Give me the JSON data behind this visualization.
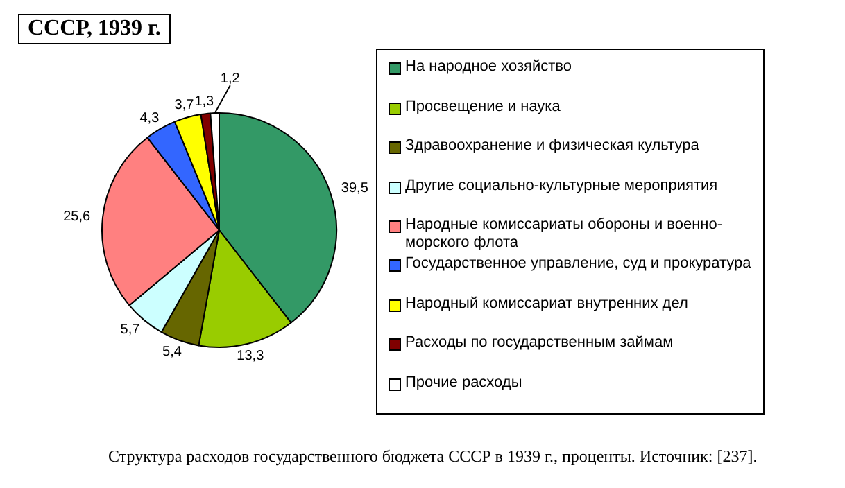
{
  "chart_data": {
    "type": "pie",
    "title": "СССР, 1939 г.",
    "categories": [
      "На народное хозяйство",
      "Просвещение и наука",
      "Здравоохранение и физическая культура",
      "Другие социально-культурные мероприятия",
      "Народные комиссариаты обороны и военно-морского флота",
      "Государственное управление, суд и прокуратура",
      "Народный комиссариат внутренних дел",
      "Расходы по государственным займам",
      "Прочие расходы"
    ],
    "values": [
      39.5,
      13.3,
      5.4,
      5.7,
      25.6,
      4.3,
      3.7,
      1.3,
      1.2
    ],
    "value_labels": [
      "39,5",
      "13,3",
      "5,4",
      "5,7",
      "25,6",
      "4,3",
      "3,7",
      "1,3",
      "1,2"
    ],
    "colors": [
      "#339966",
      "#99cc00",
      "#666600",
      "#ccffff",
      "#ff8080",
      "#3366ff",
      "#ffff00",
      "#800000",
      "#ffffff"
    ],
    "legend": "right",
    "annotations": [
      "Структура расходов государственного бюджета СССР в 1939 г., проценты. Источник: [237]."
    ]
  }
}
